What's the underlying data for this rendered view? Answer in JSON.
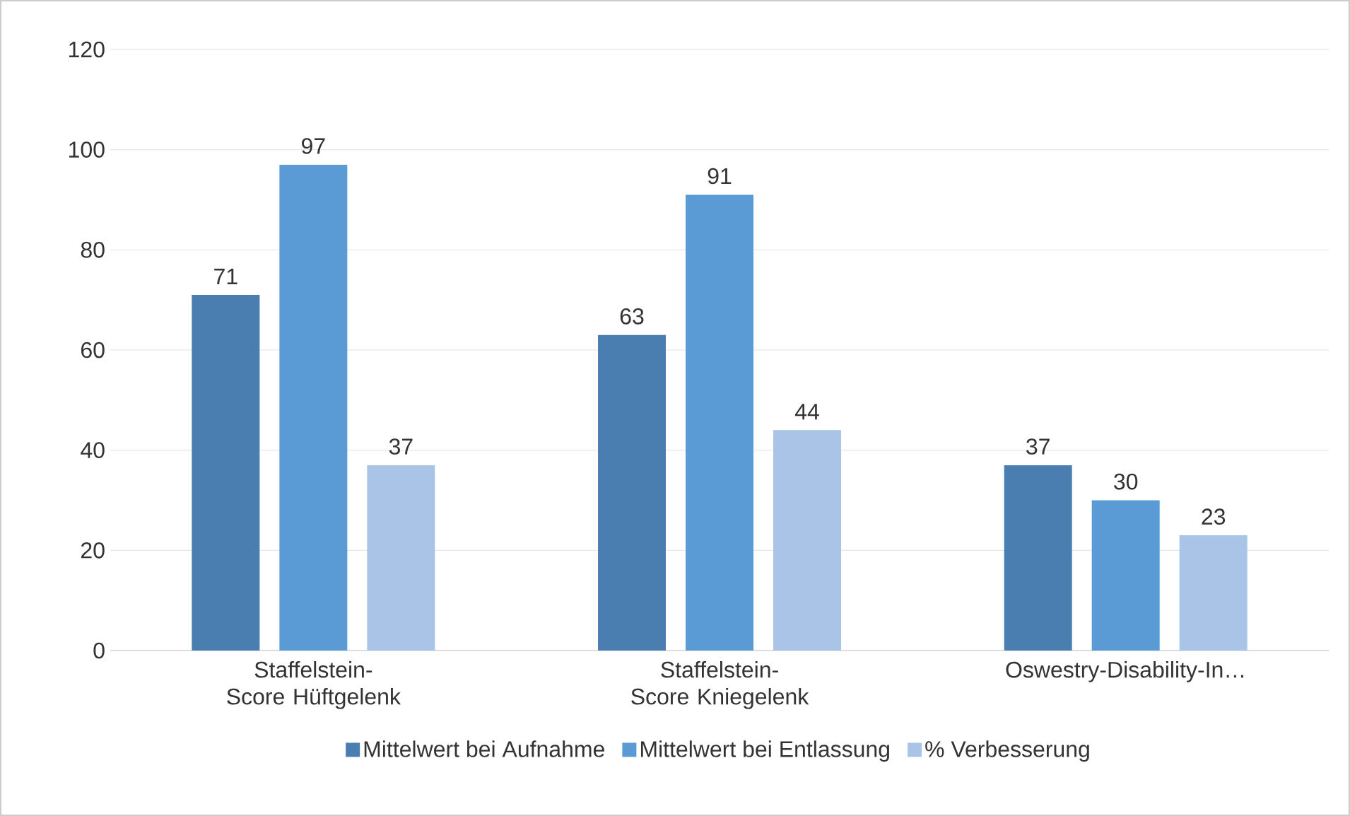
{
  "chart_data": {
    "type": "bar",
    "categories": [
      "Staffelstein-Score Hüftgelenk",
      "Staffelstein-Score Kniegelenk",
      "Oswestry-Disability-In…"
    ],
    "series": [
      {
        "name": "Mittelwert bei Aufnahme",
        "color": "#4a7eb0",
        "values": [
          71,
          63,
          37
        ]
      },
      {
        "name": "Mittelwert bei Entlassung",
        "color": "#5b9bd5",
        "values": [
          97,
          91,
          30
        ]
      },
      {
        "name": "% Verbesserung",
        "color": "#a9c4e6",
        "values": [
          37,
          44,
          23
        ]
      }
    ],
    "ylim": [
      0,
      120
    ],
    "yticks": [
      0,
      20,
      40,
      60,
      80,
      100,
      120
    ],
    "grid": "y",
    "legend": "bottom",
    "data_labels": true
  }
}
